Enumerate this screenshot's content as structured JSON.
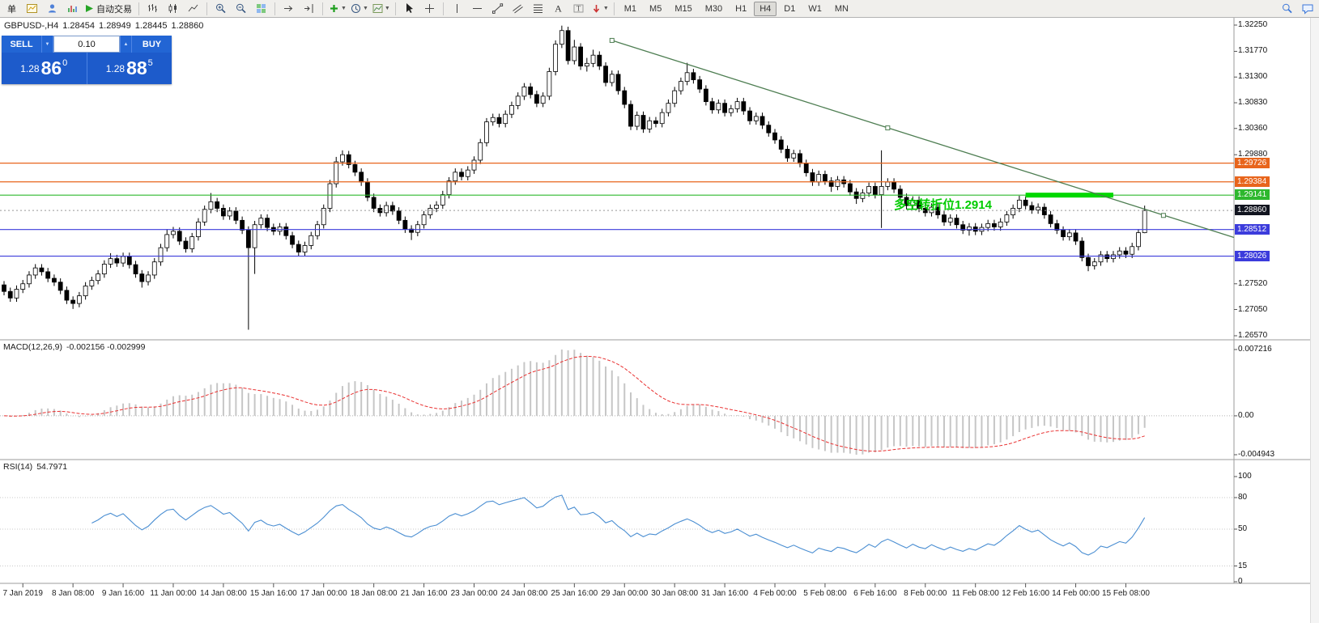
{
  "toolbar": {
    "new_order_label": "单",
    "autotrading_label": "自动交易",
    "timeframes": [
      "M1",
      "M5",
      "M15",
      "M30",
      "H1",
      "H4",
      "D1",
      "W1",
      "MN"
    ],
    "active_timeframe": "H4"
  },
  "symbol_info": {
    "name": "GBPUSD-,H4",
    "open": "1.28454",
    "high": "1.28949",
    "low": "1.28445",
    "close": "1.28860"
  },
  "trade_panel": {
    "sell_label": "SELL",
    "buy_label": "BUY",
    "volume": "0.10",
    "sell_price": {
      "base": "1.28",
      "big": "86",
      "sup": "0"
    },
    "buy_price": {
      "base": "1.28",
      "big": "88",
      "sup": "5"
    }
  },
  "price_axis": {
    "labels": [
      "1.32250",
      "1.31770",
      "1.31300",
      "1.30830",
      "1.30360",
      "1.29880",
      "1.27520",
      "1.27050",
      "1.26570"
    ],
    "colored_labels": [
      {
        "text": "1.29726",
        "color": "#e8651c"
      },
      {
        "text": "1.29384",
        "color": "#e8651c"
      },
      {
        "text": "1.29141",
        "color": "#2eb82e"
      },
      {
        "text": "1.28512",
        "color": "#3c3cdc"
      },
      {
        "text": "1.28026",
        "color": "#3c3cdc"
      }
    ],
    "current": {
      "text": "1.28860",
      "color": "#11141f"
    }
  },
  "time_axis": {
    "labels": [
      {
        "text": "7 Jan 2019",
        "bar": 3
      },
      {
        "text": "8 Jan 08:00",
        "bar": 11
      },
      {
        "text": "9 Jan 16:00",
        "bar": 19
      },
      {
        "text": "11 Jan 00:00",
        "bar": 27
      },
      {
        "text": "14 Jan 08:00",
        "bar": 35
      },
      {
        "text": "15 Jan 16:00",
        "bar": 43
      },
      {
        "text": "17 Jan 00:00",
        "bar": 51
      },
      {
        "text": "18 Jan 08:00",
        "bar": 59
      },
      {
        "text": "21 Jan 16:00",
        "bar": 67
      },
      {
        "text": "23 Jan 00:00",
        "bar": 75
      },
      {
        "text": "24 Jan 08:00",
        "bar": 83
      },
      {
        "text": "25 Jan 16:00",
        "bar": 91
      },
      {
        "text": "29 Jan 00:00",
        "bar": 99
      },
      {
        "text": "30 Jan 08:00",
        "bar": 107
      },
      {
        "text": "31 Jan 16:00",
        "bar": 115
      },
      {
        "text": "4 Feb 00:00",
        "bar": 123
      },
      {
        "text": "5 Feb 08:00",
        "bar": 131
      },
      {
        "text": "6 Feb 16:00",
        "bar": 139
      },
      {
        "text": "8 Feb 00:00",
        "bar": 147
      },
      {
        "text": "11 Feb 08:00",
        "bar": 155
      },
      {
        "text": "12 Feb 16:00",
        "bar": 163
      },
      {
        "text": "14 Feb 00:00",
        "bar": 171
      },
      {
        "text": "15 Feb 08:00",
        "bar": 179
      }
    ]
  },
  "indicators": {
    "macd": {
      "title": "MACD(12,26,9)",
      "values": "-0.002156 -0.002999",
      "axis": [
        "0.007216",
        "0.00",
        "-0.004943"
      ]
    },
    "rsi": {
      "title": "RSI(14)",
      "value": "54.7971",
      "axis": [
        "100",
        "80",
        "50",
        "15",
        "0"
      ],
      "levels": [
        80,
        50,
        15
      ]
    }
  },
  "chart_data": {
    "type": "candlestick",
    "symbol": "GBPUSD-",
    "timeframe": "H4",
    "price_range": [
      1.2657,
      1.3225
    ],
    "current_price": 1.2886,
    "hlines": [
      {
        "price": 1.29726,
        "color": "#e8651c"
      },
      {
        "price": 1.29384,
        "color": "#e8651c"
      },
      {
        "price": 1.29141,
        "color": "#2eb82e"
      },
      {
        "price": 1.28512,
        "color": "#3c3cdc"
      },
      {
        "price": 1.28026,
        "color": "#3c3cdc"
      }
    ],
    "trendline": {
      "from_bar": 97,
      "from_price": 1.3197,
      "to_bar": 185,
      "to_price": 1.2877,
      "ray_to_bar": 197,
      "ray_to_price": 1.2834,
      "color": "#4e7e52"
    },
    "highlight_segment": {
      "from_bar": 163,
      "to_bar": 177,
      "price": 1.29141,
      "color": "#00d800"
    },
    "annotation": {
      "text": "多空转折位1.2914",
      "bar": 142,
      "price": 1.2889,
      "color": "#00cc00"
    },
    "candles": [
      [
        1.275,
        1.2757,
        1.2731,
        1.2738
      ],
      [
        1.2738,
        1.2745,
        1.2719,
        1.2726
      ],
      [
        1.2726,
        1.2749,
        1.2719,
        1.2742
      ],
      [
        1.2742,
        1.2759,
        1.2735,
        1.2752
      ],
      [
        1.2752,
        1.2775,
        1.2745,
        1.2768
      ],
      [
        1.2768,
        1.2788,
        1.2761,
        1.2781
      ],
      [
        1.2781,
        1.2788,
        1.2767,
        1.2774
      ],
      [
        1.2774,
        1.2781,
        1.2755,
        1.2762
      ],
      [
        1.2762,
        1.2769,
        1.2748,
        1.2755
      ],
      [
        1.2755,
        1.2762,
        1.2733,
        1.274
      ],
      [
        1.274,
        1.2747,
        1.2715,
        1.2722
      ],
      [
        1.2722,
        1.2729,
        1.2706,
        1.2716
      ],
      [
        1.2716,
        1.2737,
        1.2709,
        1.273
      ],
      [
        1.273,
        1.2755,
        1.2723,
        1.2748
      ],
      [
        1.2748,
        1.2765,
        1.2741,
        1.2758
      ],
      [
        1.2758,
        1.2777,
        1.2751,
        1.277
      ],
      [
        1.277,
        1.2795,
        1.2763,
        1.2788
      ],
      [
        1.2788,
        1.2808,
        1.2781,
        1.2798
      ],
      [
        1.2798,
        1.2805,
        1.2783,
        1.279
      ],
      [
        1.279,
        1.2809,
        1.2783,
        1.2802
      ],
      [
        1.2802,
        1.2809,
        1.278,
        1.2787
      ],
      [
        1.2787,
        1.2794,
        1.2763,
        1.277
      ],
      [
        1.277,
        1.2777,
        1.2745,
        1.2756
      ],
      [
        1.2756,
        1.2775,
        1.2749,
        1.2768
      ],
      [
        1.2768,
        1.2799,
        1.2761,
        1.2792
      ],
      [
        1.2792,
        1.2825,
        1.2785,
        1.2818
      ],
      [
        1.2818,
        1.2852,
        1.2811,
        1.2842
      ],
      [
        1.2842,
        1.2856,
        1.2835,
        1.2848
      ],
      [
        1.2848,
        1.2855,
        1.2823,
        1.283
      ],
      [
        1.283,
        1.2837,
        1.2809,
        1.2816
      ],
      [
        1.2816,
        1.2845,
        1.2809,
        1.2838
      ],
      [
        1.2838,
        1.2872,
        1.2831,
        1.2865
      ],
      [
        1.2865,
        1.2895,
        1.2858,
        1.2888
      ],
      [
        1.2888,
        1.2918,
        1.2881,
        1.2902
      ],
      [
        1.2902,
        1.2909,
        1.2883,
        1.289
      ],
      [
        1.289,
        1.2897,
        1.2869,
        1.2876
      ],
      [
        1.2876,
        1.2892,
        1.2869,
        1.2885
      ],
      [
        1.2885,
        1.2892,
        1.2861,
        1.2868
      ],
      [
        1.2868,
        1.2875,
        1.2843,
        1.285
      ],
      [
        1.285,
        1.2857,
        1.2668,
        1.2818
      ],
      [
        1.2818,
        1.2867,
        1.277,
        1.286
      ],
      [
        1.286,
        1.2879,
        1.2853,
        1.2872
      ],
      [
        1.2872,
        1.2879,
        1.2848,
        1.2855
      ],
      [
        1.2855,
        1.2862,
        1.2841,
        1.2848
      ],
      [
        1.2848,
        1.2863,
        1.2841,
        1.2856
      ],
      [
        1.2856,
        1.2863,
        1.2833,
        1.284
      ],
      [
        1.284,
        1.2847,
        1.2817,
        1.2824
      ],
      [
        1.2824,
        1.2831,
        1.2803,
        1.281
      ],
      [
        1.281,
        1.2829,
        1.2803,
        1.2822
      ],
      [
        1.2822,
        1.2847,
        1.2815,
        1.284
      ],
      [
        1.284,
        1.2867,
        1.2833,
        1.286
      ],
      [
        1.286,
        1.2897,
        1.2853,
        1.289
      ],
      [
        1.289,
        1.2942,
        1.2883,
        1.2935
      ],
      [
        1.2935,
        1.2984,
        1.2928,
        1.2975
      ],
      [
        1.2975,
        1.2996,
        1.2968,
        1.2988
      ],
      [
        1.2988,
        1.2995,
        1.2963,
        1.297
      ],
      [
        1.297,
        1.2977,
        1.2949,
        1.2956
      ],
      [
        1.2956,
        1.2963,
        1.2931,
        1.2938
      ],
      [
        1.2938,
        1.2945,
        1.2903,
        1.291
      ],
      [
        1.291,
        1.2917,
        1.2883,
        1.289
      ],
      [
        1.289,
        1.2897,
        1.2875,
        1.2882
      ],
      [
        1.2882,
        1.2902,
        1.2875,
        1.2895
      ],
      [
        1.2895,
        1.2902,
        1.2878,
        1.2885
      ],
      [
        1.2885,
        1.2892,
        1.2861,
        1.2868
      ],
      [
        1.2868,
        1.2875,
        1.2845,
        1.2852
      ],
      [
        1.2852,
        1.2859,
        1.2832,
        1.2846
      ],
      [
        1.2846,
        1.2867,
        1.2839,
        1.286
      ],
      [
        1.286,
        1.2885,
        1.2853,
        1.2878
      ],
      [
        1.2878,
        1.2897,
        1.2871,
        1.289
      ],
      [
        1.289,
        1.2903,
        1.2883,
        1.2896
      ],
      [
        1.2896,
        1.2922,
        1.2889,
        1.2915
      ],
      [
        1.2915,
        1.2947,
        1.2908,
        1.294
      ],
      [
        1.294,
        1.2963,
        1.2933,
        1.2956
      ],
      [
        1.2956,
        1.2963,
        1.2941,
        1.2948
      ],
      [
        1.2948,
        1.2967,
        1.2941,
        1.296
      ],
      [
        1.296,
        1.2985,
        1.2953,
        1.2978
      ],
      [
        1.2978,
        1.3017,
        1.2971,
        1.301
      ],
      [
        1.301,
        1.3055,
        1.3003,
        1.3048
      ],
      [
        1.3048,
        1.3063,
        1.3041,
        1.3056
      ],
      [
        1.3056,
        1.3063,
        1.3038,
        1.3045
      ],
      [
        1.3045,
        1.3069,
        1.3038,
        1.3062
      ],
      [
        1.3062,
        1.3085,
        1.3055,
        1.3078
      ],
      [
        1.3078,
        1.3102,
        1.3071,
        1.3095
      ],
      [
        1.3095,
        1.3119,
        1.3088,
        1.3112
      ],
      [
        1.3112,
        1.3119,
        1.3091,
        1.3098
      ],
      [
        1.3098,
        1.3105,
        1.3075,
        1.3082
      ],
      [
        1.3082,
        1.3102,
        1.3075,
        1.3095
      ],
      [
        1.3095,
        1.3147,
        1.3088,
        1.314
      ],
      [
        1.314,
        1.3197,
        1.3133,
        1.319
      ],
      [
        1.319,
        1.3224,
        1.3183,
        1.3215
      ],
      [
        1.3215,
        1.3222,
        1.3153,
        1.316
      ],
      [
        1.316,
        1.3198,
        1.3153,
        1.3185
      ],
      [
        1.3185,
        1.3192,
        1.3143,
        1.315
      ],
      [
        1.315,
        1.3165,
        1.314,
        1.3155
      ],
      [
        1.3155,
        1.318,
        1.3148,
        1.317
      ],
      [
        1.317,
        1.3177,
        1.3143,
        1.315
      ],
      [
        1.315,
        1.3157,
        1.3113,
        1.312
      ],
      [
        1.312,
        1.3142,
        1.3113,
        1.3135
      ],
      [
        1.3135,
        1.3142,
        1.3098,
        1.3105
      ],
      [
        1.3105,
        1.3112,
        1.3073,
        1.308
      ],
      [
        1.308,
        1.3087,
        1.3033,
        1.304
      ],
      [
        1.304,
        1.3067,
        1.3033,
        1.306
      ],
      [
        1.306,
        1.3067,
        1.3028,
        1.3035
      ],
      [
        1.3035,
        1.3057,
        1.3028,
        1.305
      ],
      [
        1.305,
        1.3057,
        1.3038,
        1.3045
      ],
      [
        1.3045,
        1.3072,
        1.3038,
        1.3065
      ],
      [
        1.3065,
        1.3089,
        1.3058,
        1.3082
      ],
      [
        1.3082,
        1.3112,
        1.3075,
        1.3105
      ],
      [
        1.3105,
        1.3129,
        1.3098,
        1.3122
      ],
      [
        1.3122,
        1.3156,
        1.3115,
        1.3138
      ],
      [
        1.3138,
        1.3145,
        1.3118,
        1.3125
      ],
      [
        1.3125,
        1.3132,
        1.3101,
        1.3108
      ],
      [
        1.3108,
        1.3115,
        1.3078,
        1.3085
      ],
      [
        1.3085,
        1.3092,
        1.3063,
        1.307
      ],
      [
        1.307,
        1.3089,
        1.3063,
        1.3082
      ],
      [
        1.3082,
        1.3089,
        1.3058,
        1.3065
      ],
      [
        1.3065,
        1.3079,
        1.3058,
        1.3072
      ],
      [
        1.3072,
        1.3092,
        1.3065,
        1.3085
      ],
      [
        1.3085,
        1.3092,
        1.3061,
        1.3068
      ],
      [
        1.3068,
        1.3075,
        1.3043,
        1.305
      ],
      [
        1.305,
        1.3065,
        1.3043,
        1.3058
      ],
      [
        1.3058,
        1.3065,
        1.3035,
        1.3042
      ],
      [
        1.3042,
        1.3049,
        1.3021,
        1.3028
      ],
      [
        1.3028,
        1.3035,
        1.3008,
        1.3015
      ],
      [
        1.3015,
        1.3022,
        1.2991,
        1.2998
      ],
      [
        1.2998,
        1.3005,
        1.2975,
        1.2982
      ],
      [
        1.2982,
        1.2997,
        1.2975,
        1.299
      ],
      [
        1.299,
        1.2997,
        1.2965,
        1.2972
      ],
      [
        1.2972,
        1.2979,
        1.2948,
        1.2955
      ],
      [
        1.2955,
        1.2962,
        1.2931,
        1.2938
      ],
      [
        1.2938,
        1.2959,
        1.2931,
        1.2952
      ],
      [
        1.2952,
        1.2959,
        1.2933,
        1.294
      ],
      [
        1.294,
        1.2947,
        1.292,
        1.293
      ],
      [
        1.293,
        1.2949,
        1.2923,
        1.2942
      ],
      [
        1.2942,
        1.2949,
        1.2928,
        1.2935
      ],
      [
        1.2935,
        1.2942,
        1.2913,
        1.292
      ],
      [
        1.292,
        1.2927,
        1.2898,
        1.2908
      ],
      [
        1.2908,
        1.2925,
        1.2901,
        1.2918
      ],
      [
        1.2918,
        1.2937,
        1.2911,
        1.293
      ],
      [
        1.293,
        1.2937,
        1.2908,
        1.2915
      ],
      [
        1.2915,
        1.2996,
        1.2854,
        1.293
      ],
      [
        1.293,
        1.2945,
        1.2923,
        1.2938
      ],
      [
        1.2938,
        1.2945,
        1.2918,
        1.2925
      ],
      [
        1.2925,
        1.2932,
        1.2903,
        1.291
      ],
      [
        1.291,
        1.2917,
        1.2888,
        1.2895
      ],
      [
        1.2895,
        1.2912,
        1.2888,
        1.2905
      ],
      [
        1.2905,
        1.2912,
        1.2883,
        1.289
      ],
      [
        1.289,
        1.2897,
        1.2875,
        1.2882
      ],
      [
        1.2882,
        1.2899,
        1.2875,
        1.2892
      ],
      [
        1.2892,
        1.2899,
        1.2871,
        1.2878
      ],
      [
        1.2878,
        1.2885,
        1.2858,
        1.2865
      ],
      [
        1.2865,
        1.2879,
        1.2858,
        1.2872
      ],
      [
        1.2872,
        1.2879,
        1.2853,
        1.286
      ],
      [
        1.286,
        1.2867,
        1.2843,
        1.285
      ],
      [
        1.285,
        1.2863,
        1.284,
        1.2856
      ],
      [
        1.2856,
        1.2863,
        1.2841,
        1.2848
      ],
      [
        1.2848,
        1.2862,
        1.2841,
        1.2855
      ],
      [
        1.2855,
        1.2869,
        1.2848,
        1.2862
      ],
      [
        1.2862,
        1.2869,
        1.2849,
        1.2856
      ],
      [
        1.2856,
        1.2872,
        1.2849,
        1.2865
      ],
      [
        1.2865,
        1.2885,
        1.2858,
        1.2878
      ],
      [
        1.2878,
        1.2897,
        1.2871,
        1.289
      ],
      [
        1.289,
        1.2913,
        1.2883,
        1.2905
      ],
      [
        1.2905,
        1.2912,
        1.2888,
        1.2895
      ],
      [
        1.2895,
        1.2902,
        1.288,
        1.2887
      ],
      [
        1.2887,
        1.2899,
        1.288,
        1.2892
      ],
      [
        1.2892,
        1.2899,
        1.2871,
        1.2878
      ],
      [
        1.2878,
        1.2885,
        1.2855,
        1.2862
      ],
      [
        1.2862,
        1.2869,
        1.2843,
        1.285
      ],
      [
        1.285,
        1.2857,
        1.2831,
        1.2838
      ],
      [
        1.2838,
        1.2852,
        1.2831,
        1.2845
      ],
      [
        1.2845,
        1.2852,
        1.2823,
        1.283
      ],
      [
        1.283,
        1.2837,
        1.2793,
        1.28
      ],
      [
        1.28,
        1.2807,
        1.2775,
        1.2785
      ],
      [
        1.2785,
        1.2799,
        1.2778,
        1.2792
      ],
      [
        1.2792,
        1.2812,
        1.2785,
        1.2805
      ],
      [
        1.2805,
        1.2812,
        1.2791,
        1.2798
      ],
      [
        1.2798,
        1.2812,
        1.2791,
        1.2805
      ],
      [
        1.2805,
        1.2819,
        1.2798,
        1.2812
      ],
      [
        1.2812,
        1.2819,
        1.2799,
        1.2806
      ],
      [
        1.2806,
        1.2827,
        1.2799,
        1.282
      ],
      [
        1.282,
        1.2852,
        1.2813,
        1.28454
      ],
      [
        1.28454,
        1.28949,
        1.28445,
        1.2886
      ]
    ]
  }
}
